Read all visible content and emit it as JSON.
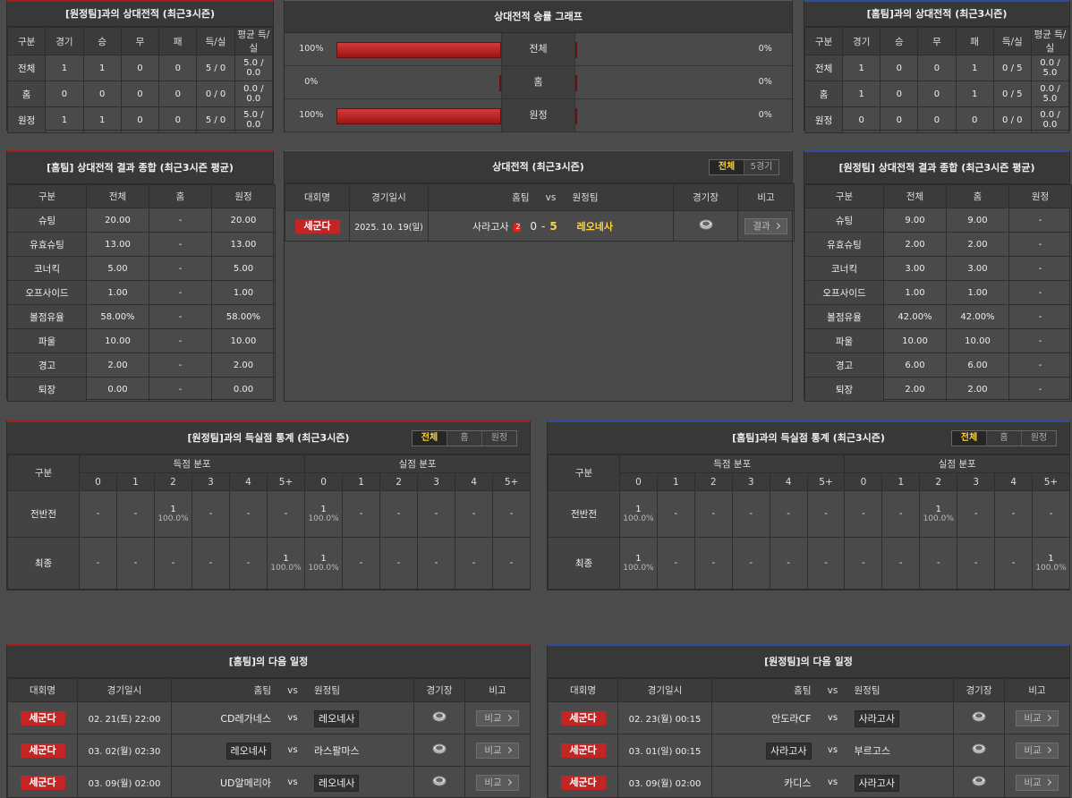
{
  "h2h_away": {
    "title": "[원정팀]과의 상대전적 (최근3시즌)",
    "columns": [
      "구분",
      "경기",
      "승",
      "무",
      "패",
      "득/실",
      "평균 득/실"
    ],
    "rows": [
      [
        "전체",
        "1",
        "1",
        "0",
        "0",
        "5 / 0",
        "5.0 / 0.0"
      ],
      [
        "홈",
        "0",
        "0",
        "0",
        "0",
        "0 / 0",
        "0.0 / 0.0"
      ],
      [
        "원정",
        "1",
        "1",
        "0",
        "0",
        "5 / 0",
        "5.0 / 0.0"
      ]
    ]
  },
  "winrate": {
    "title": "상대전적 승률 그래프",
    "rows": [
      {
        "label": "전체",
        "home": 100,
        "home_label": "100%",
        "away": 0,
        "away_label": "0%"
      },
      {
        "label": "홈",
        "home": 0,
        "home_label": "0%",
        "away": 0,
        "away_label": "0%"
      },
      {
        "label": "원정",
        "home": 100,
        "home_label": "100%",
        "away": 0,
        "away_label": "0%"
      }
    ]
  },
  "h2h_home": {
    "title": "[홈팀]과의 상대전적 (최근3시즌)",
    "columns": [
      "구분",
      "경기",
      "승",
      "무",
      "패",
      "득/실",
      "평균 득/실"
    ],
    "rows": [
      [
        "전체",
        "1",
        "0",
        "0",
        "1",
        "0 / 5",
        "0.0 / 5.0"
      ],
      [
        "홈",
        "1",
        "0",
        "0",
        "1",
        "0 / 5",
        "0.0 / 5.0"
      ],
      [
        "원정",
        "0",
        "0",
        "0",
        "0",
        "0 / 0",
        "0.0 / 0.0"
      ]
    ]
  },
  "summary_home": {
    "title": "[홈팀] 상대전적 결과 종합 (최근3시즌 평균)",
    "columns": [
      "구분",
      "전체",
      "홈",
      "원정"
    ],
    "rows": [
      [
        "슈팅",
        "20.00",
        "-",
        "20.00"
      ],
      [
        "유효슈팅",
        "13.00",
        "-",
        "13.00"
      ],
      [
        "코너킥",
        "5.00",
        "-",
        "5.00"
      ],
      [
        "오프사이드",
        "1.00",
        "-",
        "1.00"
      ],
      [
        "볼점유율",
        "58.00%",
        "-",
        "58.00%"
      ],
      [
        "파울",
        "10.00",
        "-",
        "10.00"
      ],
      [
        "경고",
        "2.00",
        "-",
        "2.00"
      ],
      [
        "퇴장",
        "0.00",
        "-",
        "0.00"
      ]
    ]
  },
  "h2h_matches": {
    "title": "상대전적 (최근3시즌)",
    "tabs": [
      "전체",
      "5경기"
    ],
    "columns": [
      "대회명",
      "경기일시",
      "홈팀",
      "vs",
      "원정팀",
      "경기장",
      "비고"
    ],
    "rows": [
      {
        "league": "세군다",
        "date": "2025. 10. 19(일)",
        "home": "사라고사",
        "red_card": "2",
        "home_score": "0",
        "dash": "-",
        "away_score": "5",
        "away": "레오네사",
        "button": "결과"
      }
    ]
  },
  "summary_away": {
    "title": "[원정팀] 상대전적 결과 종합 (최근3시즌 평균)",
    "columns": [
      "구분",
      "전체",
      "홈",
      "원정"
    ],
    "rows": [
      [
        "슈팅",
        "9.00",
        "9.00",
        "-"
      ],
      [
        "유효슈팅",
        "2.00",
        "2.00",
        "-"
      ],
      [
        "코너킥",
        "3.00",
        "3.00",
        "-"
      ],
      [
        "오프사이드",
        "1.00",
        "1.00",
        "-"
      ],
      [
        "볼점유율",
        "42.00%",
        "42.00%",
        "-"
      ],
      [
        "파울",
        "10.00",
        "10.00",
        "-"
      ],
      [
        "경고",
        "6.00",
        "6.00",
        "-"
      ],
      [
        "퇴장",
        "2.00",
        "2.00",
        "-"
      ]
    ]
  },
  "goals_away": {
    "title": "[원정팀]과의 득실점 통계 (최근3시즌)",
    "tabs": [
      "전체",
      "홈",
      "원정"
    ],
    "group_label": "구분",
    "scored_label": "득점 분포",
    "conceded_label": "실점 분포",
    "bins": [
      "0",
      "1",
      "2",
      "3",
      "4",
      "5+"
    ],
    "rows": [
      {
        "label": "전반전",
        "scored": [
          "-",
          "-",
          {
            "n": "1",
            "p": "100.0%"
          },
          "-",
          "-",
          "-"
        ],
        "conceded": [
          {
            "n": "1",
            "p": "100.0%"
          },
          "-",
          "-",
          "-",
          "-",
          "-"
        ]
      },
      {
        "label": "최종",
        "scored": [
          "-",
          "-",
          "-",
          "-",
          "-",
          {
            "n": "1",
            "p": "100.0%"
          }
        ],
        "conceded": [
          {
            "n": "1",
            "p": "100.0%"
          },
          "-",
          "-",
          "-",
          "-",
          "-"
        ]
      }
    ]
  },
  "goals_home": {
    "title": "[홈팀]과의 득실점 통계 (최근3시즌)",
    "tabs": [
      "전체",
      "홈",
      "원정"
    ],
    "group_label": "구분",
    "scored_label": "득점 분포",
    "conceded_label": "실점 분포",
    "bins": [
      "0",
      "1",
      "2",
      "3",
      "4",
      "5+"
    ],
    "rows": [
      {
        "label": "전반전",
        "scored": [
          {
            "n": "1",
            "p": "100.0%"
          },
          "-",
          "-",
          "-",
          "-",
          "-"
        ],
        "conceded": [
          "-",
          "-",
          {
            "n": "1",
            "p": "100.0%"
          },
          "-",
          "-",
          "-"
        ]
      },
      {
        "label": "최종",
        "scored": [
          {
            "n": "1",
            "p": "100.0%"
          },
          "-",
          "-",
          "-",
          "-",
          "-"
        ],
        "conceded": [
          "-",
          "-",
          "-",
          "-",
          "-",
          {
            "n": "1",
            "p": "100.0%"
          }
        ]
      }
    ]
  },
  "next_home": {
    "title": "[홈팀]의 다음 일정",
    "columns": [
      "대회명",
      "경기일시",
      "홈팀",
      "vs",
      "원정팀",
      "경기장",
      "비고"
    ],
    "rows": [
      {
        "league": "세군다",
        "date": "02. 21(토) 22:00",
        "home": "CD레가네스",
        "away": "레오네사",
        "highlight": "away",
        "button": "비교"
      },
      {
        "league": "세군다",
        "date": "03. 02(월) 02:30",
        "home": "레오네사",
        "away": "라스팔마스",
        "highlight": "home",
        "button": "비교"
      },
      {
        "league": "세군다",
        "date": "03. 09(월) 02:00",
        "home": "UD알메리아",
        "away": "레오네사",
        "highlight": "away",
        "button": "비교"
      }
    ]
  },
  "next_away": {
    "title": "[원정팀]의 다음 일정",
    "columns": [
      "대회명",
      "경기일시",
      "홈팀",
      "vs",
      "원정팀",
      "경기장",
      "비고"
    ],
    "rows": [
      {
        "league": "세군다",
        "date": "02. 23(월) 00:15",
        "home": "안도라CF",
        "away": "사라고사",
        "highlight": "away",
        "button": "비교"
      },
      {
        "league": "세군다",
        "date": "03. 01(일) 00:15",
        "home": "사라고사",
        "away": "부르고스",
        "highlight": "home",
        "button": "비교"
      },
      {
        "league": "세군다",
        "date": "03. 09(월) 02:00",
        "home": "카디스",
        "away": "사라고사",
        "highlight": "away",
        "button": "비교"
      }
    ]
  }
}
